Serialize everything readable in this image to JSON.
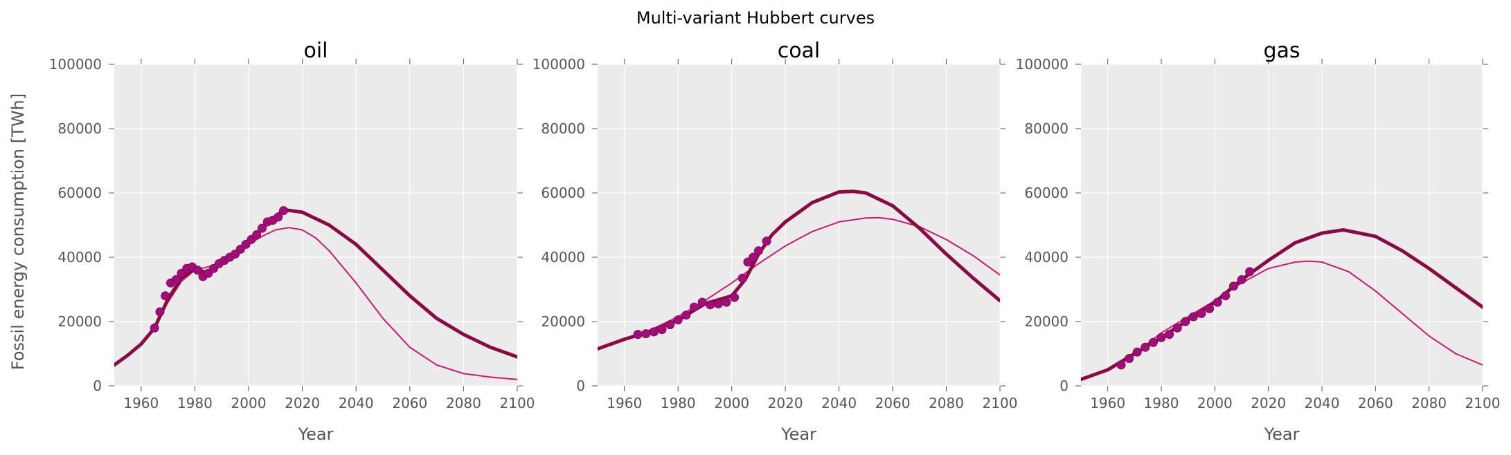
{
  "figure": {
    "title": "Multi-variant Hubbert curves",
    "ylabel": "Fossil energy consumption [TWh]"
  },
  "colors": {
    "plot_bg": "#ebebeb",
    "grid": "#ffffff",
    "fit_thick": "#8b0a44",
    "fit_thin": "#d3166e",
    "points_fill": "#a00d7e",
    "points_edge": "#8b0a44"
  },
  "chart_data": [
    {
      "type": "line",
      "title": "oil",
      "xlabel": "Year",
      "ylabel": "Fossil energy consumption [TWh]",
      "xlim": [
        1950,
        2100
      ],
      "ylim": [
        0,
        100000
      ],
      "xticks": [
        "1960",
        "1980",
        "2000",
        "2020",
        "2040",
        "2060",
        "2080",
        "2100"
      ],
      "yticks": [
        "0",
        "20000",
        "40000",
        "60000",
        "80000",
        "100000"
      ],
      "grid": true,
      "observed": {
        "x": [
          1965,
          1967,
          1969,
          1971,
          1973,
          1975,
          1977,
          1979,
          1981,
          1983,
          1985,
          1987,
          1989,
          1991,
          1993,
          1995,
          1997,
          1999,
          2001,
          2003,
          2005,
          2007,
          2009,
          2011,
          2013
        ],
        "y": [
          18000,
          23000,
          28000,
          32000,
          33000,
          35000,
          36500,
          37000,
          36000,
          34000,
          35000,
          36500,
          38000,
          39000,
          40000,
          41000,
          42500,
          44000,
          45500,
          47000,
          49000,
          51000,
          51500,
          52500,
          54500
        ]
      },
      "series": [
        {
          "style": "thick",
          "x": [
            1950,
            1955,
            1960,
            1965,
            1970,
            1975,
            1980,
            1985,
            1990,
            1995,
            2000,
            2005,
            2010,
            2013,
            2020,
            2030,
            2040,
            2050,
            2060,
            2070,
            2080,
            2090,
            2100
          ],
          "y": [
            6500,
            9500,
            13000,
            18000,
            27000,
            33500,
            36500,
            35000,
            38000,
            41000,
            45000,
            49000,
            52500,
            54800,
            54000,
            50000,
            44000,
            36000,
            28000,
            21000,
            16000,
            12000,
            9000
          ]
        },
        {
          "style": "thin",
          "x": [
            1950,
            1955,
            1960,
            1965,
            1970,
            1975,
            1980,
            1985,
            1990,
            1995,
            2000,
            2005,
            2010,
            2015,
            2020,
            2025,
            2030,
            2040,
            2050,
            2060,
            2070,
            2080,
            2090,
            2100
          ],
          "y": [
            6500,
            9500,
            13000,
            18500,
            26000,
            32500,
            36000,
            37000,
            38500,
            41000,
            44000,
            46500,
            48500,
            49200,
            48500,
            46000,
            42000,
            32000,
            21000,
            12000,
            6500,
            3800,
            2700,
            2000
          ]
        }
      ]
    },
    {
      "type": "line",
      "title": "coal",
      "xlabel": "Year",
      "ylabel": "",
      "xlim": [
        1950,
        2100
      ],
      "ylim": [
        0,
        100000
      ],
      "xticks": [
        "1960",
        "1980",
        "2000",
        "2020",
        "2040",
        "2060",
        "2080",
        "2100"
      ],
      "yticks": [
        "0",
        "20000",
        "40000",
        "60000",
        "80000",
        "100000"
      ],
      "grid": true,
      "observed": {
        "x": [
          1965,
          1968,
          1971,
          1974,
          1977,
          1980,
          1983,
          1986,
          1989,
          1992,
          1995,
          1998,
          2001,
          2004,
          2006,
          2008,
          2010,
          2013
        ],
        "y": [
          16000,
          16200,
          16800,
          17500,
          19000,
          20500,
          22000,
          24500,
          26000,
          25200,
          25500,
          26000,
          27500,
          33500,
          38500,
          40000,
          42000,
          45000
        ]
      },
      "series": [
        {
          "style": "thick",
          "x": [
            1950,
            1960,
            1970,
            1980,
            1990,
            2000,
            2005,
            2010,
            2015,
            2020,
            2030,
            2040,
            2045,
            2050,
            2060,
            2070,
            2080,
            2090,
            2100
          ],
          "y": [
            11500,
            14500,
            17000,
            20500,
            25500,
            28000,
            33000,
            41000,
            47000,
            51000,
            57000,
            60300,
            60500,
            60000,
            56000,
            49000,
            41000,
            33500,
            26500
          ]
        },
        {
          "style": "thin",
          "x": [
            1950,
            1960,
            1970,
            1980,
            1990,
            2000,
            2010,
            2020,
            2030,
            2040,
            2050,
            2055,
            2060,
            2070,
            2080,
            2090,
            2100
          ],
          "y": [
            11500,
            14500,
            17500,
            21500,
            26500,
            32000,
            38000,
            43500,
            48000,
            51000,
            52200,
            52300,
            51800,
            49500,
            45500,
            40500,
            34500
          ]
        }
      ]
    },
    {
      "type": "line",
      "title": "gas",
      "xlabel": "Year",
      "ylabel": "",
      "xlim": [
        1950,
        2100
      ],
      "ylim": [
        0,
        100000
      ],
      "xticks": [
        "1960",
        "1980",
        "2000",
        "2020",
        "2040",
        "2060",
        "2080",
        "2100"
      ],
      "yticks": [
        "0",
        "20000",
        "40000",
        "60000",
        "80000",
        "100000"
      ],
      "grid": true,
      "observed": {
        "x": [
          1965,
          1968,
          1971,
          1974,
          1977,
          1980,
          1983,
          1986,
          1989,
          1992,
          1995,
          1998,
          2001,
          2004,
          2007,
          2010,
          2013
        ],
        "y": [
          6500,
          8500,
          10500,
          12000,
          13500,
          15000,
          16000,
          18000,
          20000,
          21500,
          22500,
          24000,
          26000,
          28000,
          31000,
          33000,
          35500
        ]
      },
      "series": [
        {
          "style": "thick",
          "x": [
            1950,
            1960,
            1970,
            1980,
            1990,
            2000,
            2010,
            2020,
            2030,
            2040,
            2048,
            2060,
            2070,
            2080,
            2090,
            2100
          ],
          "y": [
            2000,
            5000,
            10000,
            15000,
            20500,
            26000,
            33000,
            39000,
            44500,
            47500,
            48500,
            46500,
            42000,
            36500,
            30500,
            24500
          ]
        },
        {
          "style": "thin",
          "x": [
            1950,
            1960,
            1970,
            1980,
            1990,
            2000,
            2010,
            2020,
            2030,
            2035,
            2040,
            2050,
            2060,
            2070,
            2080,
            2090,
            2100
          ],
          "y": [
            2000,
            5000,
            10000,
            16500,
            21500,
            26500,
            32000,
            36500,
            38500,
            38800,
            38500,
            35500,
            29500,
            22500,
            15500,
            10000,
            6500
          ]
        }
      ]
    }
  ]
}
